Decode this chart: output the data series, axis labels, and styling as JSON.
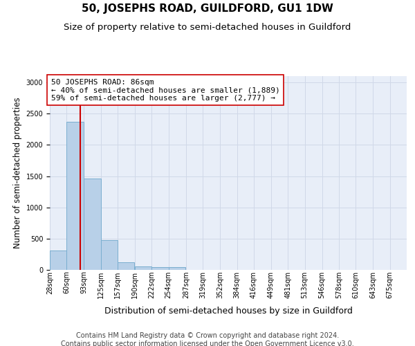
{
  "title": "50, JOSEPHS ROAD, GUILDFORD, GU1 1DW",
  "subtitle": "Size of property relative to semi-detached houses in Guildford",
  "xlabel": "Distribution of semi-detached houses by size in Guildford",
  "ylabel": "Number of semi-detached properties",
  "footer_line1": "Contains HM Land Registry data © Crown copyright and database right 2024.",
  "footer_line2": "Contains public sector information licensed under the Open Government Licence v3.0.",
  "bin_labels": [
    "28sqm",
    "60sqm",
    "93sqm",
    "125sqm",
    "157sqm",
    "190sqm",
    "222sqm",
    "254sqm",
    "287sqm",
    "319sqm",
    "352sqm",
    "384sqm",
    "416sqm",
    "449sqm",
    "481sqm",
    "513sqm",
    "546sqm",
    "578sqm",
    "610sqm",
    "643sqm",
    "675sqm"
  ],
  "bin_edges": [
    28,
    60,
    93,
    125,
    157,
    190,
    222,
    254,
    287,
    319,
    352,
    384,
    416,
    449,
    481,
    513,
    546,
    578,
    610,
    643,
    675
  ],
  "bin_width": 32,
  "bar_heights": [
    310,
    2370,
    1460,
    480,
    120,
    60,
    45,
    45,
    0,
    0,
    0,
    0,
    0,
    0,
    0,
    0,
    0,
    0,
    0,
    0
  ],
  "bar_color": "#b8d0e8",
  "bar_edge_color": "#7aaed0",
  "grid_color": "#d0d8e8",
  "bg_color": "#e8eef8",
  "property_sqm": 86,
  "property_label": "50 JOSEPHS ROAD: 86sqm",
  "annotation_smaller": "← 40% of semi-detached houses are smaller (1,889)",
  "annotation_larger": "59% of semi-detached houses are larger (2,777) →",
  "vline_color": "#cc0000",
  "annotation_box_color": "#ffffff",
  "annotation_box_edge": "#cc0000",
  "ylim": [
    0,
    3100
  ],
  "yticks": [
    0,
    500,
    1000,
    1500,
    2000,
    2500,
    3000
  ],
  "title_fontsize": 11,
  "subtitle_fontsize": 9.5,
  "annot_fontsize": 8,
  "ylabel_fontsize": 8.5,
  "xlabel_fontsize": 9,
  "tick_fontsize": 7,
  "footer_fontsize": 7
}
